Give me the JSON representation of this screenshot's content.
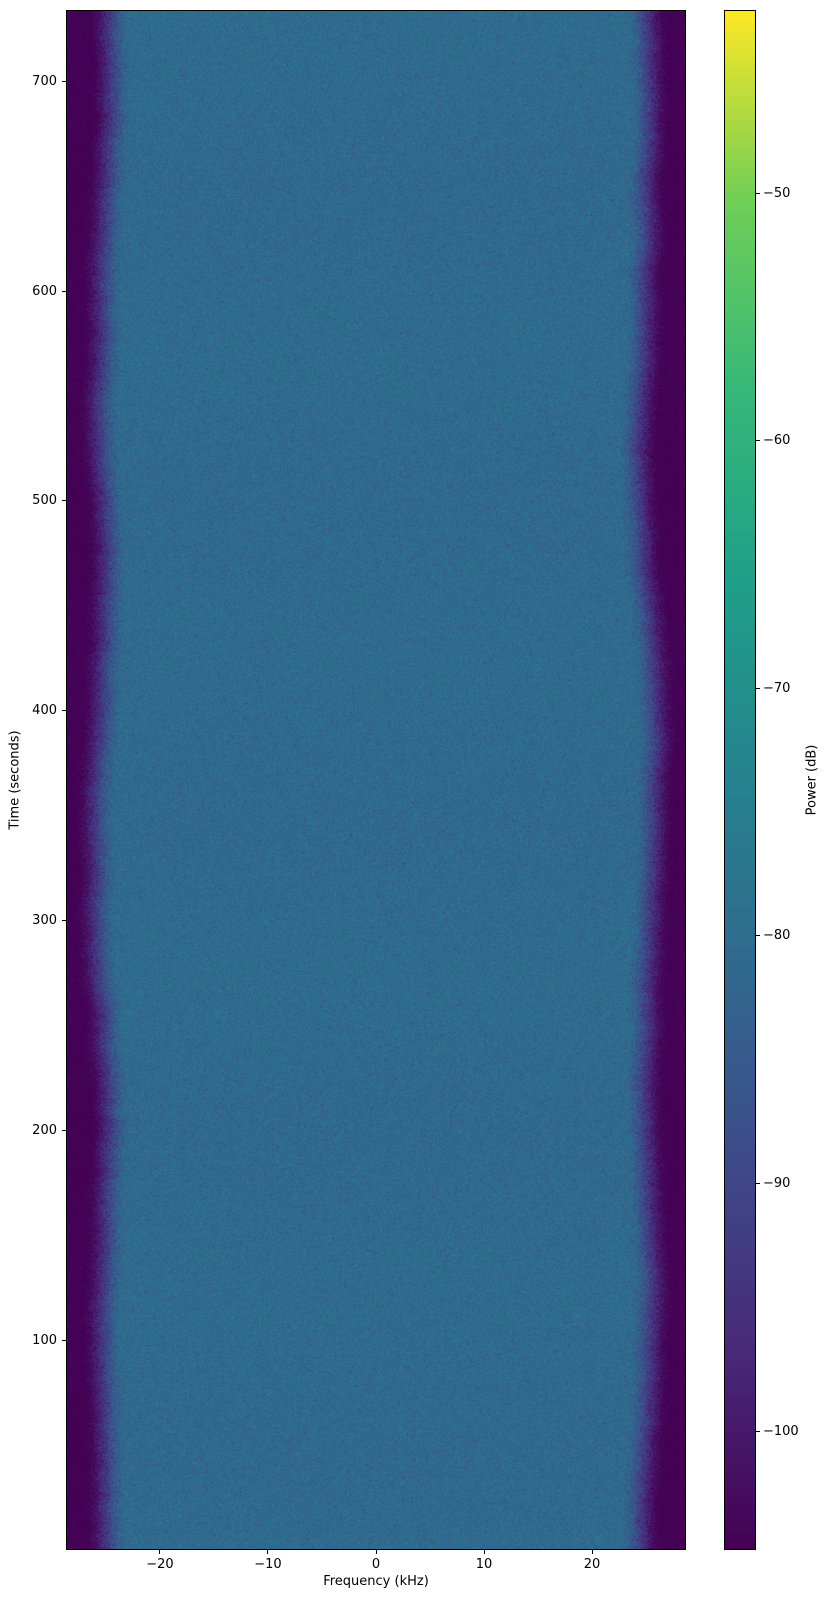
{
  "figure": {
    "xlabel": "Frequency (kHz)",
    "ylabel": "Time (seconds)",
    "colorbar_label": "Power (dB)"
  },
  "chart_data": {
    "type": "heatmap",
    "subtype": "spectrogram",
    "title": "",
    "xlabel": "Frequency (kHz)",
    "ylabel": "Time (seconds)",
    "colorbar_label": "Power (dB)",
    "colormap": "viridis",
    "grid": false,
    "x_range_khz": [
      -28.7,
      28.7
    ],
    "y_range_seconds": [
      0,
      734
    ],
    "x_ticks": [
      {
        "value": -20,
        "label": "−20"
      },
      {
        "value": -10,
        "label": "−10"
      },
      {
        "value": 0,
        "label": "0"
      },
      {
        "value": 10,
        "label": "10"
      },
      {
        "value": 20,
        "label": "20"
      }
    ],
    "y_ticks": [
      {
        "value": 700,
        "label": "700"
      },
      {
        "value": 600,
        "label": "600"
      },
      {
        "value": 500,
        "label": "500"
      },
      {
        "value": 400,
        "label": "400"
      },
      {
        "value": 300,
        "label": "300"
      },
      {
        "value": 200,
        "label": "200"
      },
      {
        "value": 100,
        "label": "100"
      }
    ],
    "colorbar": {
      "vmin_db": -104.8,
      "vmax_db": -42.6,
      "ticks": [
        {
          "value": -50,
          "label": "−50"
        },
        {
          "value": -60,
          "label": "−60"
        },
        {
          "value": -70,
          "label": "−70"
        },
        {
          "value": -80,
          "label": "−80"
        },
        {
          "value": -90,
          "label": "−90"
        },
        {
          "value": -100,
          "label": "−100"
        }
      ],
      "colormap_stops_hex": [
        "#440154",
        "#482878",
        "#3e4a89",
        "#31688e",
        "#26828e",
        "#1f9e89",
        "#35b779",
        "#6ece58",
        "#fde725"
      ]
    },
    "signal": {
      "description": "Uniform wideband noise occupying the full duration; flat speckled noise floor across the passband with smooth roll-off to a dark floor at the band edges; band-edge boundary wobbles slightly over time.",
      "passband_edge_khz": 23.3,
      "stopband_edge_khz": 27.2,
      "passband_mean_db": -80.6,
      "passband_noise_sigma_db": 2.6,
      "stopband_floor_db": -104.5,
      "rolloff_depth_db": 24.2
    }
  }
}
